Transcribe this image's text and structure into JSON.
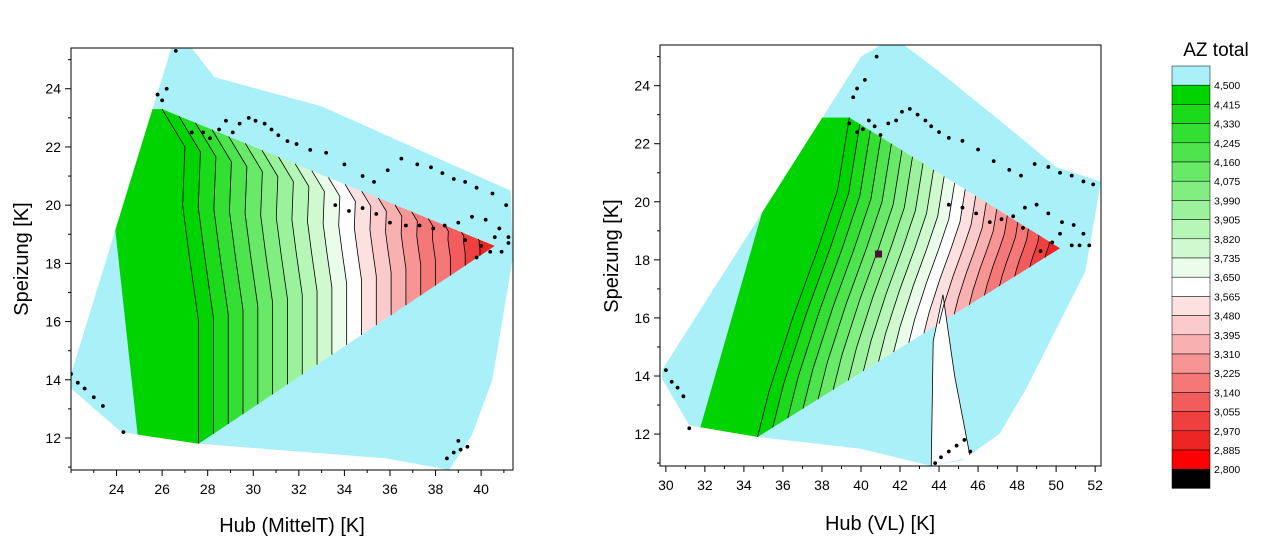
{
  "chart_data": [
    {
      "type": "contour",
      "xlabel": "Hub (MittelT) [K]",
      "ylabel": "Speizung [K]",
      "xlim": [
        22,
        41.4
      ],
      "ylim": [
        10.9,
        25.4
      ],
      "xticks": [
        24,
        26,
        28,
        30,
        32,
        34,
        36,
        38,
        40
      ],
      "yticks": [
        12,
        14,
        16,
        18,
        20,
        22,
        24
      ],
      "hull": [
        [
          26.4,
          25.4
        ],
        [
          27.3,
          25.4
        ],
        [
          28.3,
          24.4
        ],
        [
          33.0,
          23.4
        ],
        [
          37.0,
          22.0
        ],
        [
          41.3,
          20.5
        ],
        [
          41.4,
          18.2
        ],
        [
          40.5,
          14.0
        ],
        [
          39.6,
          12.1
        ],
        [
          38.6,
          10.9
        ],
        [
          35.8,
          11.3
        ],
        [
          27.6,
          11.8
        ],
        [
          24.2,
          12.2
        ],
        [
          22.0,
          13.7
        ],
        [
          22.0,
          14.2
        ]
      ],
      "ridge": [
        [
          26.0,
          23.3
        ],
        [
          27.0,
          22.0
        ],
        [
          26.9,
          20.0
        ],
        [
          27.2,
          18.2
        ],
        [
          27.6,
          16.0
        ],
        [
          27.6,
          14.0
        ],
        [
          27.6,
          11.8
        ]
      ],
      "optimum": [
        40.6,
        18.6
      ],
      "points": [
        [
          22.0,
          14.2
        ],
        [
          22.3,
          13.9
        ],
        [
          22.6,
          13.7
        ],
        [
          23.0,
          13.4
        ],
        [
          23.4,
          13.1
        ],
        [
          24.3,
          12.2
        ],
        [
          25.8,
          23.8
        ],
        [
          26.0,
          23.6
        ],
        [
          26.2,
          24.0
        ],
        [
          26.6,
          25.3
        ],
        [
          27.3,
          22.5
        ],
        [
          27.8,
          22.5
        ],
        [
          28.1,
          22.3
        ],
        [
          28.5,
          22.6
        ],
        [
          28.8,
          22.9
        ],
        [
          29.1,
          22.5
        ],
        [
          29.4,
          22.8
        ],
        [
          29.8,
          23.0
        ],
        [
          30.1,
          22.9
        ],
        [
          30.5,
          22.8
        ],
        [
          30.8,
          22.6
        ],
        [
          31.1,
          22.4
        ],
        [
          31.5,
          22.2
        ],
        [
          31.9,
          22.1
        ],
        [
          32.5,
          21.9
        ],
        [
          33.2,
          21.8
        ],
        [
          34.0,
          21.4
        ],
        [
          34.8,
          21.0
        ],
        [
          35.3,
          20.8
        ],
        [
          35.9,
          21.2
        ],
        [
          36.5,
          21.6
        ],
        [
          37.2,
          21.4
        ],
        [
          37.8,
          21.3
        ],
        [
          38.3,
          21.1
        ],
        [
          38.8,
          20.9
        ],
        [
          39.3,
          20.8
        ],
        [
          39.8,
          20.6
        ],
        [
          40.5,
          20.4
        ],
        [
          41.1,
          20.0
        ],
        [
          33.6,
          20.0
        ],
        [
          34.2,
          19.8
        ],
        [
          34.8,
          19.9
        ],
        [
          35.4,
          19.7
        ],
        [
          36.0,
          19.4
        ],
        [
          36.7,
          19.3
        ],
        [
          37.3,
          19.3
        ],
        [
          37.9,
          19.2
        ],
        [
          38.4,
          19.3
        ],
        [
          39.0,
          19.4
        ],
        [
          39.6,
          19.6
        ],
        [
          40.2,
          19.5
        ],
        [
          40.8,
          19.2
        ],
        [
          41.2,
          18.9
        ],
        [
          40.0,
          18.6
        ],
        [
          40.4,
          18.4
        ],
        [
          40.9,
          18.4
        ],
        [
          41.2,
          18.7
        ],
        [
          39.3,
          18.8
        ],
        [
          39.8,
          18.2
        ],
        [
          40.6,
          18.9
        ],
        [
          38.5,
          11.3
        ],
        [
          38.8,
          11.5
        ],
        [
          39.1,
          11.6
        ],
        [
          39.4,
          11.7
        ],
        [
          39.0,
          11.9
        ]
      ]
    },
    {
      "type": "contour",
      "xlabel": "Hub (VL) [K]",
      "ylabel": "Speizung [K]",
      "xlim": [
        29.7,
        52.3
      ],
      "ylim": [
        10.9,
        25.4
      ],
      "xticks": [
        30,
        32,
        34,
        36,
        38,
        40,
        42,
        44,
        46,
        48,
        50,
        52
      ],
      "yticks": [
        12,
        14,
        16,
        18,
        20,
        22,
        24
      ],
      "hull": [
        [
          40.0,
          25.0
        ],
        [
          41.0,
          25.4
        ],
        [
          42.2,
          25.4
        ],
        [
          43.8,
          24.6
        ],
        [
          47.3,
          22.7
        ],
        [
          50.0,
          21.2
        ],
        [
          52.3,
          20.7
        ],
        [
          51.5,
          17.6
        ],
        [
          48.5,
          13.6
        ],
        [
          47.1,
          12.0
        ],
        [
          45.2,
          11.1
        ],
        [
          43.6,
          10.9
        ],
        [
          39.9,
          11.5
        ],
        [
          34.7,
          11.9
        ],
        [
          31.2,
          12.3
        ],
        [
          29.8,
          13.9
        ],
        [
          29.8,
          14.2
        ]
      ],
      "ridge": [
        [
          39.4,
          22.9
        ],
        [
          38.8,
          20.4
        ],
        [
          37.8,
          18.4
        ],
        [
          36.5,
          16.0
        ],
        [
          35.3,
          13.5
        ],
        [
          34.7,
          11.9
        ]
      ],
      "cut": [
        [
          43.6,
          10.9
        ],
        [
          43.7,
          15.2
        ],
        [
          44.2,
          16.8
        ],
        [
          44.8,
          14.0
        ],
        [
          45.6,
          11.2
        ]
      ],
      "optimum": [
        50.2,
        18.4
      ],
      "marker": [
        40.9,
        18.2
      ],
      "points": [
        [
          30.0,
          14.2
        ],
        [
          30.3,
          13.8
        ],
        [
          30.6,
          13.6
        ],
        [
          30.9,
          13.3
        ],
        [
          31.2,
          12.2
        ],
        [
          39.6,
          23.6
        ],
        [
          39.8,
          23.9
        ],
        [
          40.2,
          24.2
        ],
        [
          40.8,
          25.0
        ],
        [
          39.4,
          22.7
        ],
        [
          39.8,
          22.4
        ],
        [
          40.1,
          22.5
        ],
        [
          40.4,
          22.8
        ],
        [
          40.7,
          22.6
        ],
        [
          41.0,
          22.3
        ],
        [
          41.4,
          22.7
        ],
        [
          41.8,
          22.8
        ],
        [
          42.1,
          23.1
        ],
        [
          42.5,
          23.2
        ],
        [
          42.9,
          23.0
        ],
        [
          43.3,
          22.8
        ],
        [
          43.6,
          22.6
        ],
        [
          44.0,
          22.4
        ],
        [
          44.5,
          22.2
        ],
        [
          45.2,
          22.1
        ],
        [
          46.0,
          21.8
        ],
        [
          46.8,
          21.4
        ],
        [
          47.6,
          21.1
        ],
        [
          48.2,
          20.9
        ],
        [
          48.9,
          21.3
        ],
        [
          49.6,
          21.2
        ],
        [
          50.2,
          21.0
        ],
        [
          50.8,
          20.9
        ],
        [
          51.4,
          20.7
        ],
        [
          51.9,
          20.6
        ],
        [
          44.5,
          19.9
        ],
        [
          45.2,
          19.8
        ],
        [
          45.9,
          19.6
        ],
        [
          46.6,
          19.3
        ],
        [
          47.2,
          19.4
        ],
        [
          47.8,
          19.5
        ],
        [
          48.4,
          19.8
        ],
        [
          49.0,
          19.9
        ],
        [
          49.6,
          19.6
        ],
        [
          50.3,
          19.3
        ],
        [
          50.9,
          19.2
        ],
        [
          51.4,
          18.9
        ],
        [
          51.7,
          18.5
        ],
        [
          50.2,
          18.9
        ],
        [
          50.8,
          18.5
        ],
        [
          51.2,
          18.5
        ],
        [
          49.8,
          18.6
        ],
        [
          49.2,
          18.3
        ],
        [
          48.3,
          19.1
        ],
        [
          43.8,
          11.0
        ],
        [
          44.1,
          11.2
        ],
        [
          44.5,
          11.4
        ],
        [
          44.9,
          11.6
        ],
        [
          45.3,
          11.8
        ],
        [
          45.6,
          11.4
        ]
      ]
    }
  ],
  "colorbar": {
    "title": "AZ total",
    "levels": [
      "4,500",
      "4,415",
      "4,330",
      "4,245",
      "4,160",
      "4,075",
      "3,990",
      "3,905",
      "3,820",
      "3,735",
      "3,650",
      "3,565",
      "3,480",
      "3,395",
      "3,310",
      "3,225",
      "3,140",
      "3,055",
      "2,970",
      "2,885",
      "2,800"
    ],
    "colors": [
      "#aaf0f8",
      "#00d400",
      "#1ada1a",
      "#34df34",
      "#4ee44e",
      "#68e968",
      "#82ee82",
      "#9cf29c",
      "#b6f6b6",
      "#d0f9d0",
      "#eafcea",
      "#ffffff",
      "#fde0e0",
      "#fbcaca",
      "#f9b0b0",
      "#f79494",
      "#f57878",
      "#f25c5c",
      "#ef4040",
      "#ec2424",
      "#ff0000",
      "#000000"
    ]
  }
}
